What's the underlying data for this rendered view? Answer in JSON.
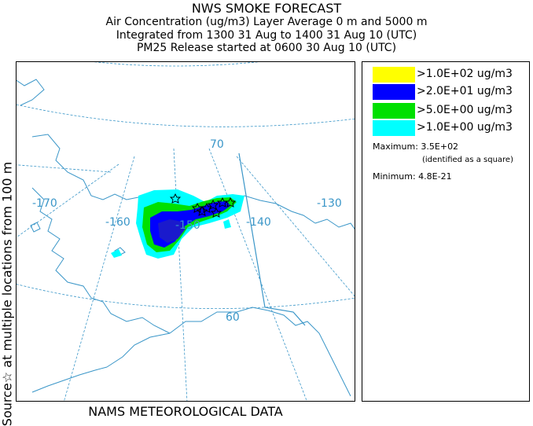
{
  "header": {
    "title": "NWS SMOKE FORECAST",
    "line2": "Air Concentration (ug/m3) Layer Average    0 m and  5000 m",
    "line3": "Integrated from 1300 31 Aug to 1400 31 Aug 10 (UTC)",
    "line4": "PM25 Release started at 0600 30 Aug 10 (UTC)"
  },
  "side_label": "Source☆ at multiple locations  from  100 m",
  "footer": "NAMS METEOROLOGICAL DATA",
  "map": {
    "graticule_labels": {
      "lon_170": "-170",
      "lon_160": "-160",
      "lon_150": "-150",
      "lon_140": "-140",
      "lon_130": "-130",
      "lat_70": "70",
      "lat_60": "60"
    },
    "colors": {
      "graticule": "#3a96c8",
      "coastline": "#3a96c8"
    }
  },
  "legend": {
    "levels": [
      {
        "label": ">1.0E+02 ug/m3",
        "color": "#ffff00"
      },
      {
        "label": ">2.0E+01 ug/m3",
        "color": "#0000ff"
      },
      {
        "label": ">5.0E+00 ug/m3",
        "color": "#00e000"
      },
      {
        "label": ">1.0E+00 ug/m3",
        "color": "#00ffff"
      }
    ],
    "maximum_label": "Maximum: 3.5E+02",
    "maximum_note": "(identified as a square)",
    "minimum_label": "Minimum: 4.8E-21"
  }
}
